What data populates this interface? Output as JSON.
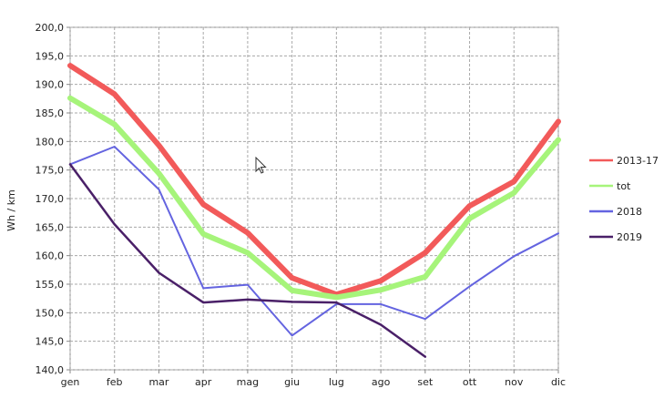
{
  "chart_data": {
    "type": "line",
    "title": "",
    "xlabel": "",
    "ylabel": "Wh / km",
    "categories": [
      "gen",
      "feb",
      "mar",
      "apr",
      "mag",
      "giu",
      "lug",
      "ago",
      "set",
      "ott",
      "nov",
      "dic"
    ],
    "ylim": [
      140,
      200
    ],
    "yticks": [
      "140,0",
      "145,0",
      "150,0",
      "155,0",
      "160,0",
      "165,0",
      "170,0",
      "175,0",
      "180,0",
      "185,0",
      "190,0",
      "195,0",
      "200,0"
    ],
    "grid": true,
    "legend_position": "right",
    "series": [
      {
        "name": "2013-17",
        "color": "#f25a5a",
        "values": [
          193.3,
          188.3,
          179.3,
          169.0,
          164.0,
          156.1,
          153.2,
          155.6,
          160.5,
          168.7,
          173.0,
          183.5
        ]
      },
      {
        "name": "tot",
        "color": "#a6f47a",
        "values": [
          187.6,
          183.0,
          174.4,
          163.8,
          160.5,
          153.9,
          152.7,
          154.0,
          156.3,
          166.5,
          171.0,
          180.3
        ]
      },
      {
        "name": "2018",
        "color": "#6464e0",
        "values": [
          176.0,
          179.1,
          171.6,
          154.3,
          154.9,
          146.0,
          151.5,
          151.5,
          148.9,
          154.6,
          159.9,
          163.9
        ]
      },
      {
        "name": "2019",
        "color": "#4a2068",
        "values": [
          176.0,
          165.5,
          157.0,
          151.8,
          152.3,
          151.9,
          151.8,
          147.9,
          142.3,
          null,
          null,
          null
        ]
      }
    ]
  }
}
